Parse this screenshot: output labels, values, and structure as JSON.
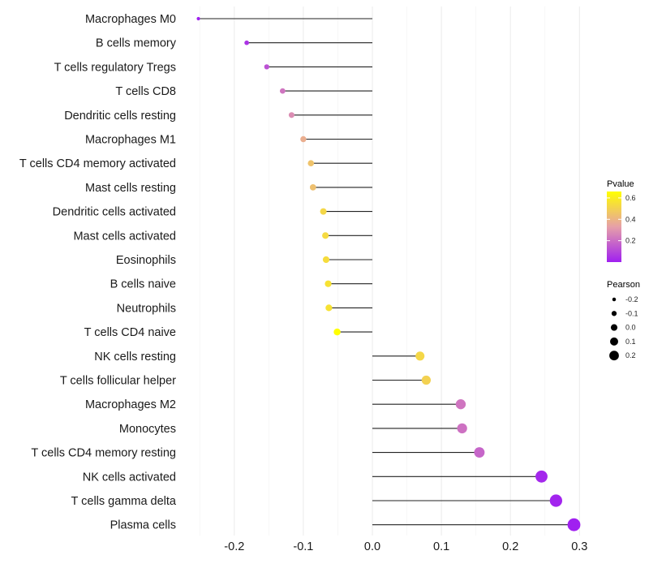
{
  "chart_data": {
    "type": "lollipop",
    "title": "",
    "xlabel": "",
    "ylabel": "",
    "xlim": [
      -0.255,
      0.305
    ],
    "xticks": [
      -0.2,
      -0.1,
      0.0,
      0.1,
      0.2,
      0.3
    ],
    "xtick_labels": [
      "-0.2",
      "-0.1",
      "0.0",
      "0.1",
      "0.2",
      "0.3"
    ],
    "grid": true,
    "categories": [
      "Macrophages M0",
      "B cells memory",
      "T cells regulatory  Tregs ",
      "T cells CD8",
      "Dendritic cells resting",
      "Macrophages M1",
      "T cells CD4 memory activated",
      "Mast cells resting",
      "Dendritic cells activated",
      "Mast cells activated",
      "Eosinophils",
      "B cells naive",
      "Neutrophils",
      "T cells CD4 naive",
      "NK cells resting",
      "T cells follicular helper",
      "Macrophages M2",
      "Monocytes",
      "T cells CD4 memory resting",
      "NK cells activated",
      "T cells gamma delta",
      "Plasma cells"
    ],
    "pearson": [
      -0.252,
      -0.182,
      -0.153,
      -0.13,
      -0.117,
      -0.1,
      -0.089,
      -0.086,
      -0.071,
      -0.068,
      -0.067,
      -0.064,
      -0.063,
      -0.051,
      0.069,
      0.078,
      0.128,
      0.13,
      0.155,
      0.245,
      0.266,
      0.292
    ],
    "pvalue": [
      0.0,
      0.05,
      0.13,
      0.22,
      0.28,
      0.38,
      0.45,
      0.44,
      0.52,
      0.53,
      0.54,
      0.56,
      0.56,
      0.66,
      0.52,
      0.5,
      0.22,
      0.21,
      0.18,
      0.02,
      0.01,
      0.0
    ],
    "legend": {
      "color": {
        "title": "Pvalue",
        "ticks": [
          0.2,
          0.4,
          0.6
        ],
        "tick_labels": [
          "0.2",
          "0.4",
          "0.6"
        ],
        "low_color": "#A020F0",
        "mid_color": "#E895A8",
        "high_color": "#FFFF00",
        "range": [
          0.0,
          0.66
        ]
      },
      "size": {
        "title": "Pearson",
        "values": [
          -0.2,
          -0.1,
          0.0,
          0.1,
          0.2
        ],
        "labels": [
          "-0.2",
          "-0.1",
          "0.0",
          "0.1",
          "0.2"
        ]
      },
      "placement": "right"
    }
  }
}
